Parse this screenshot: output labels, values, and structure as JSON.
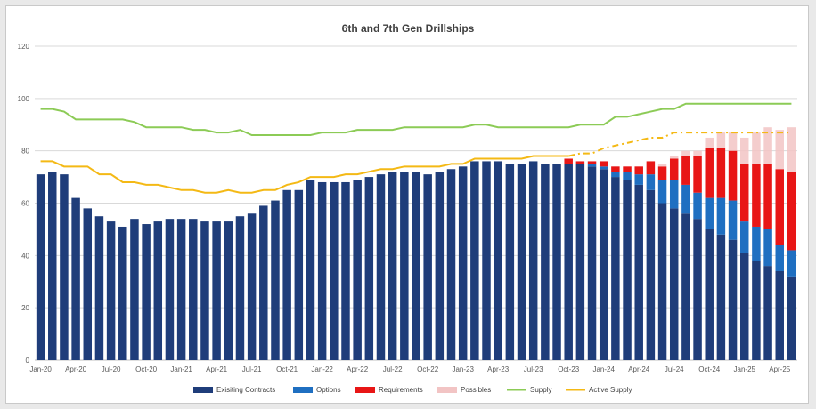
{
  "chart_data": {
    "type": "bar",
    "title": "6th and 7th Gen Drillships",
    "xlabel": "",
    "ylabel": "",
    "ylim": [
      0,
      120
    ],
    "yticks": [
      0,
      20,
      40,
      60,
      80,
      100,
      120
    ],
    "grid": true,
    "legend_position": "bottom",
    "colors": {
      "contracts": "#1f3d7a",
      "options": "#1f6fc1",
      "requirements": "#e81616",
      "possibles": "#f2c4c4",
      "supply": "#8ccb56",
      "active_supply": "#f4b915",
      "grid": "#d9d9d9",
      "axis": "#bfbfbf"
    },
    "categories": [
      "Jan-20",
      "Feb-20",
      "Mar-20",
      "Apr-20",
      "May-20",
      "Jun-20",
      "Jul-20",
      "Aug-20",
      "Sep-20",
      "Oct-20",
      "Nov-20",
      "Dec-20",
      "Jan-21",
      "Feb-21",
      "Mar-21",
      "Apr-21",
      "May-21",
      "Jun-21",
      "Jul-21",
      "Aug-21",
      "Sep-21",
      "Oct-21",
      "Nov-21",
      "Dec-21",
      "Jan-22",
      "Feb-22",
      "Mar-22",
      "Apr-22",
      "May-22",
      "Jun-22",
      "Jul-22",
      "Aug-22",
      "Sep-22",
      "Oct-22",
      "Nov-22",
      "Dec-22",
      "Jan-23",
      "Feb-23",
      "Mar-23",
      "Apr-23",
      "May-23",
      "Jun-23",
      "Jul-23",
      "Aug-23",
      "Sep-23",
      "Oct-23",
      "Nov-23",
      "Dec-23",
      "Jan-24",
      "Feb-24",
      "Mar-24",
      "Apr-24",
      "May-24",
      "Jun-24",
      "Jul-24",
      "Aug-24",
      "Sep-24",
      "Oct-24",
      "Nov-24",
      "Dec-24",
      "Jan-25",
      "Feb-25",
      "Mar-25",
      "Apr-25",
      "May-25"
    ],
    "x_tick_labels": [
      "Jan-20",
      "Apr-20",
      "Jul-20",
      "Oct-20",
      "Jan-21",
      "Apr-21",
      "Jul-21",
      "Oct-21",
      "Jan-22",
      "Apr-22",
      "Jul-22",
      "Oct-22",
      "Jan-23",
      "Apr-23",
      "Jul-23",
      "Oct-23",
      "Jan-24",
      "Apr-24",
      "Jul-24",
      "Oct-24",
      "Jan-25",
      "Apr-25"
    ],
    "series": [
      {
        "name": "Exisiting Contracts",
        "kind": "bar",
        "values": [
          71,
          72,
          71,
          62,
          58,
          55,
          53,
          51,
          54,
          52,
          53,
          54,
          54,
          54,
          53,
          53,
          53,
          55,
          56,
          59,
          61,
          65,
          65,
          69,
          68,
          68,
          68,
          69,
          70,
          71,
          72,
          72,
          72,
          71,
          72,
          73,
          74,
          76,
          76,
          76,
          75,
          75,
          76,
          75,
          75,
          75,
          75,
          74,
          73,
          70,
          69,
          67,
          65,
          60,
          58,
          56,
          54,
          50,
          48,
          46,
          41,
          38,
          36,
          34,
          32
        ]
      },
      {
        "name": "Options",
        "kind": "bar",
        "values": [
          0,
          0,
          0,
          0,
          0,
          0,
          0,
          0,
          0,
          0,
          0,
          0,
          0,
          0,
          0,
          0,
          0,
          0,
          0,
          0,
          0,
          0,
          0,
          0,
          0,
          0,
          0,
          0,
          0,
          0,
          0,
          0,
          0,
          0,
          0,
          0,
          0,
          0,
          0,
          0,
          0,
          0,
          0,
          0,
          0,
          0,
          0,
          1,
          1,
          2,
          3,
          4,
          6,
          9,
          11,
          11,
          10,
          12,
          14,
          15,
          12,
          13,
          14,
          10,
          10
        ]
      },
      {
        "name": "Requirements",
        "kind": "bar",
        "values": [
          0,
          0,
          0,
          0,
          0,
          0,
          0,
          0,
          0,
          0,
          0,
          0,
          0,
          0,
          0,
          0,
          0,
          0,
          0,
          0,
          0,
          0,
          0,
          0,
          0,
          0,
          0,
          0,
          0,
          0,
          0,
          0,
          0,
          0,
          0,
          0,
          0,
          0,
          0,
          0,
          0,
          0,
          0,
          0,
          0,
          2,
          1,
          1,
          2,
          2,
          2,
          3,
          5,
          5,
          8,
          11,
          14,
          19,
          19,
          19,
          22,
          24,
          25,
          29,
          30
        ]
      },
      {
        "name": "Possibles",
        "kind": "bar",
        "values": [
          0,
          0,
          0,
          0,
          0,
          0,
          0,
          0,
          0,
          0,
          0,
          0,
          0,
          0,
          0,
          0,
          0,
          0,
          0,
          0,
          0,
          0,
          0,
          0,
          0,
          0,
          0,
          0,
          0,
          0,
          0,
          0,
          0,
          0,
          0,
          0,
          0,
          0,
          0,
          0,
          0,
          0,
          0,
          0,
          0,
          0,
          0,
          0,
          0,
          0,
          0,
          0,
          0,
          1,
          1,
          2,
          2,
          4,
          6,
          7,
          10,
          12,
          14,
          15,
          17
        ]
      },
      {
        "name": "Supply",
        "kind": "line",
        "values": [
          96,
          96,
          95,
          92,
          92,
          92,
          92,
          92,
          91,
          89,
          89,
          89,
          89,
          88,
          88,
          87,
          87,
          88,
          86,
          86,
          86,
          86,
          86,
          86,
          87,
          87,
          87,
          88,
          88,
          88,
          88,
          89,
          89,
          89,
          89,
          89,
          89,
          90,
          90,
          89,
          89,
          89,
          89,
          89,
          89,
          89,
          90,
          90,
          90,
          93,
          93,
          94,
          95,
          96,
          96,
          98,
          98,
          98,
          98,
          98,
          98,
          98,
          98,
          98,
          98
        ]
      },
      {
        "name": "Active Supply",
        "kind": "line",
        "values": [
          76,
          76,
          74,
          74,
          74,
          71,
          71,
          68,
          68,
          67,
          67,
          66,
          65,
          65,
          64,
          64,
          65,
          64,
          64,
          65,
          65,
          67,
          68,
          70,
          70,
          70,
          71,
          71,
          72,
          73,
          73,
          74,
          74,
          74,
          74,
          75,
          75,
          77,
          77,
          77,
          77,
          77,
          78,
          78,
          78,
          78,
          79,
          79,
          81,
          82,
          83,
          84,
          85,
          85,
          87,
          87,
          87,
          87,
          87,
          87,
          87,
          87,
          87,
          87,
          87
        ],
        "dashed_from_index": 45
      }
    ]
  }
}
